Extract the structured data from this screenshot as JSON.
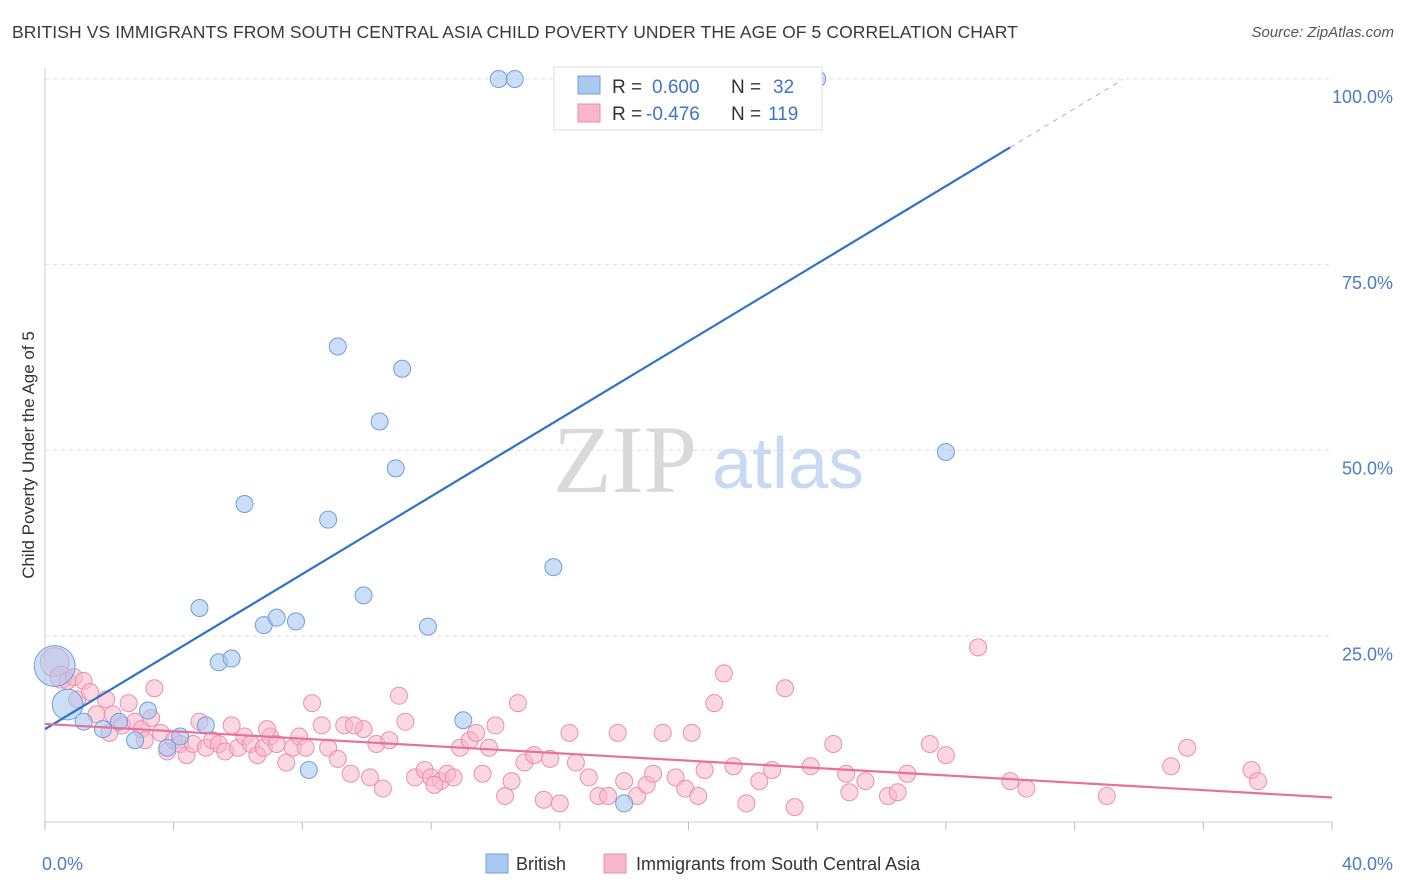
{
  "header": {
    "title": "BRITISH VS IMMIGRANTS FROM SOUTH CENTRAL ASIA CHILD POVERTY UNDER THE AGE OF 5 CORRELATION CHART",
    "source": "Source: ZipAtlas.com"
  },
  "watermark": {
    "zip": "ZIP",
    "atlas": "atlas"
  },
  "colors": {
    "british_fill": "#aac8f0",
    "british_stroke": "#6f9fdc",
    "british_line": "#2f72c8",
    "sca_fill": "#f7b6cb",
    "sca_stroke": "#ec8fae",
    "sca_line": "#e8709a",
    "tick_label": "#4a7cc9",
    "grid": "#e2e2e2"
  },
  "stats_box": {
    "rows": [
      {
        "r_label": "R =",
        "r_value": "0.600",
        "n_label": "N =",
        "n_value": "32"
      },
      {
        "r_label": "R =",
        "r_value": "-0.476",
        "n_label": "N =",
        "n_value": "119"
      }
    ]
  },
  "chart_data": {
    "type": "scatter",
    "title": "BRITISH VS IMMIGRANTS FROM SOUTH CENTRAL ASIA CHILD POVERTY UNDER THE AGE OF 5 CORRELATION CHART",
    "xlabel": "",
    "ylabel": "Child Poverty Under the Age of 5",
    "xlim": [
      0,
      40
    ],
    "ylim": [
      0,
      100
    ],
    "x_tick_labels": [
      "0.0%",
      "40.0%"
    ],
    "y_tick_labels": [
      "25.0%",
      "50.0%",
      "75.0%",
      "100.0%"
    ],
    "y_ticks": [
      25,
      50,
      75,
      100
    ],
    "grid": true,
    "legend_position": "bottom-center",
    "series": [
      {
        "name": "British",
        "trend": {
          "x0": 0,
          "y0": 12.5,
          "x1": 30,
          "y1": 90.8,
          "dash_to_x": 33.5
        },
        "points": [
          [
            0.3,
            21.0,
            2.4
          ],
          [
            0.7,
            15.8,
            1.8
          ],
          [
            1.2,
            13.5,
            1.0
          ],
          [
            1.8,
            12.5,
            1.0
          ],
          [
            2.3,
            13.5,
            1.0
          ],
          [
            2.8,
            11.0,
            1.0
          ],
          [
            3.2,
            15.0,
            1.0
          ],
          [
            3.8,
            10.0,
            1.0
          ],
          [
            4.2,
            11.5,
            1.0
          ],
          [
            4.8,
            28.8,
            1.0
          ],
          [
            5.4,
            21.5,
            1.0
          ],
          [
            5.8,
            22.0,
            1.0
          ],
          [
            6.2,
            42.8,
            1.0
          ],
          [
            6.8,
            26.5,
            1.0
          ],
          [
            7.2,
            27.5,
            1.0
          ],
          [
            7.8,
            27.0,
            1.0
          ],
          [
            8.2,
            7.0,
            1.0
          ],
          [
            8.8,
            40.7,
            1.0
          ],
          [
            9.1,
            64.0,
            1.0
          ],
          [
            9.9,
            30.5,
            1.0
          ],
          [
            10.4,
            53.9,
            1.0
          ],
          [
            10.9,
            47.6,
            1.0
          ],
          [
            11.1,
            61.0,
            1.0
          ],
          [
            11.9,
            26.3,
            1.0
          ],
          [
            13.0,
            13.7,
            1.0
          ],
          [
            14.1,
            100.0,
            1.0
          ],
          [
            14.6,
            100.0,
            1.0
          ],
          [
            15.8,
            34.3,
            1.0
          ],
          [
            18.0,
            2.5,
            1.0
          ],
          [
            24.0,
            100.0,
            1.0
          ],
          [
            28.0,
            49.8,
            1.0
          ],
          [
            5.0,
            13.0,
            1.0
          ]
        ]
      },
      {
        "name": "Immigrants from South Central Asia",
        "trend": {
          "x0": 0,
          "y0": 13.2,
          "x1": 40,
          "y1": 3.3
        },
        "points": [
          [
            0.3,
            21.5,
            1.7
          ],
          [
            0.5,
            19.5,
            1.3
          ],
          [
            0.7,
            19.0,
            1.0
          ],
          [
            0.9,
            19.5,
            1.0
          ],
          [
            1.0,
            16.5,
            1.0
          ],
          [
            1.2,
            19.0,
            1.0
          ],
          [
            1.4,
            17.5,
            1.0
          ],
          [
            1.6,
            14.5,
            1.0
          ],
          [
            1.9,
            16.5,
            1.0
          ],
          [
            2.1,
            14.5,
            1.0
          ],
          [
            2.4,
            13.0,
            1.0
          ],
          [
            2.6,
            16.0,
            1.0
          ],
          [
            2.8,
            13.5,
            1.0
          ],
          [
            3.0,
            12.5,
            1.0
          ],
          [
            3.3,
            14.0,
            1.0
          ],
          [
            3.4,
            18.0,
            1.0
          ],
          [
            3.6,
            12.0,
            1.0
          ],
          [
            3.8,
            9.5,
            1.0
          ],
          [
            4.0,
            11.0,
            1.0
          ],
          [
            4.2,
            10.5,
            1.0
          ],
          [
            4.4,
            9.0,
            1.0
          ],
          [
            4.6,
            10.5,
            1.0
          ],
          [
            4.8,
            13.5,
            1.0
          ],
          [
            5.0,
            10.0,
            1.0
          ],
          [
            5.2,
            11.0,
            1.0
          ],
          [
            5.4,
            10.5,
            1.0
          ],
          [
            5.6,
            9.5,
            1.0
          ],
          [
            5.8,
            13.0,
            1.0
          ],
          [
            6.0,
            10.0,
            1.0
          ],
          [
            6.2,
            11.5,
            1.0
          ],
          [
            6.4,
            10.5,
            1.0
          ],
          [
            6.6,
            9.0,
            1.0
          ],
          [
            6.8,
            10.0,
            1.0
          ],
          [
            7.0,
            11.5,
            1.0
          ],
          [
            7.2,
            10.5,
            1.0
          ],
          [
            7.5,
            8.0,
            1.0
          ],
          [
            7.7,
            10.0,
            1.0
          ],
          [
            7.9,
            11.5,
            1.0
          ],
          [
            8.1,
            10.0,
            1.0
          ],
          [
            8.3,
            16.0,
            1.0
          ],
          [
            8.6,
            13.0,
            1.0
          ],
          [
            8.8,
            10.0,
            1.0
          ],
          [
            9.1,
            8.5,
            1.0
          ],
          [
            9.3,
            13.0,
            1.0
          ],
          [
            9.5,
            6.5,
            1.0
          ],
          [
            9.9,
            12.5,
            1.0
          ],
          [
            10.1,
            6.0,
            1.0
          ],
          [
            10.3,
            10.5,
            1.0
          ],
          [
            10.5,
            4.5,
            1.0
          ],
          [
            10.7,
            11.0,
            1.0
          ],
          [
            11.0,
            17.0,
            1.0
          ],
          [
            11.2,
            13.5,
            1.0
          ],
          [
            11.5,
            6.0,
            1.0
          ],
          [
            11.8,
            7.0,
            1.0
          ],
          [
            12.0,
            6.0,
            1.0
          ],
          [
            12.3,
            5.5,
            1.0
          ],
          [
            12.5,
            6.5,
            1.0
          ],
          [
            12.7,
            6.0,
            1.0
          ],
          [
            12.9,
            10.0,
            1.0
          ],
          [
            13.2,
            11.0,
            1.0
          ],
          [
            13.4,
            12.0,
            1.0
          ],
          [
            13.6,
            6.5,
            1.0
          ],
          [
            13.8,
            10.0,
            1.0
          ],
          [
            14.0,
            13.0,
            1.0
          ],
          [
            14.3,
            3.5,
            1.0
          ],
          [
            14.5,
            5.5,
            1.0
          ],
          [
            14.7,
            16.0,
            1.0
          ],
          [
            14.9,
            8.0,
            1.0
          ],
          [
            15.2,
            9.0,
            1.0
          ],
          [
            15.5,
            3.0,
            1.0
          ],
          [
            15.7,
            8.5,
            1.0
          ],
          [
            16.0,
            2.5,
            1.0
          ],
          [
            16.3,
            12.0,
            1.0
          ],
          [
            16.5,
            8.0,
            1.0
          ],
          [
            16.9,
            6.0,
            1.0
          ],
          [
            17.2,
            3.5,
            1.0
          ],
          [
            17.5,
            3.5,
            1.0
          ],
          [
            17.8,
            12.0,
            1.0
          ],
          [
            18.0,
            5.5,
            1.0
          ],
          [
            18.4,
            3.5,
            1.0
          ],
          [
            18.7,
            5.0,
            1.0
          ],
          [
            18.9,
            6.5,
            1.0
          ],
          [
            19.2,
            12.0,
            1.0
          ],
          [
            19.6,
            6.0,
            1.0
          ],
          [
            19.9,
            4.5,
            1.0
          ],
          [
            20.1,
            12.0,
            1.0
          ],
          [
            20.5,
            7.0,
            1.0
          ],
          [
            20.8,
            16.0,
            1.0
          ],
          [
            21.1,
            20.0,
            1.0
          ],
          [
            21.4,
            7.5,
            1.0
          ],
          [
            21.8,
            2.5,
            1.0
          ],
          [
            22.2,
            5.5,
            1.0
          ],
          [
            22.6,
            7.0,
            1.0
          ],
          [
            23.0,
            18.0,
            1.0
          ],
          [
            23.3,
            2.0,
            1.0
          ],
          [
            23.8,
            7.5,
            1.0
          ],
          [
            24.5,
            10.5,
            1.0
          ],
          [
            24.9,
            6.5,
            1.0
          ],
          [
            25.5,
            5.5,
            1.0
          ],
          [
            26.2,
            3.5,
            1.0
          ],
          [
            26.5,
            4.0,
            1.0
          ],
          [
            26.8,
            6.5,
            1.0
          ],
          [
            27.5,
            10.5,
            1.0
          ],
          [
            28.0,
            9.0,
            1.0
          ],
          [
            29.0,
            23.5,
            1.0
          ],
          [
            30.0,
            5.5,
            1.0
          ],
          [
            30.5,
            4.5,
            1.0
          ],
          [
            33.0,
            3.5,
            1.0
          ],
          [
            35.0,
            7.5,
            1.0
          ],
          [
            35.5,
            10.0,
            1.0
          ],
          [
            37.5,
            7.0,
            1.0
          ],
          [
            37.7,
            5.5,
            1.0
          ],
          [
            3.1,
            11.0,
            1.0
          ],
          [
            6.9,
            12.5,
            1.0
          ],
          [
            12.1,
            5.0,
            1.0
          ],
          [
            20.3,
            3.5,
            1.0
          ],
          [
            25.0,
            4.0,
            1.0
          ],
          [
            2.0,
            12.0,
            1.0
          ],
          [
            9.6,
            13.0,
            1.0
          ]
        ]
      }
    ]
  }
}
